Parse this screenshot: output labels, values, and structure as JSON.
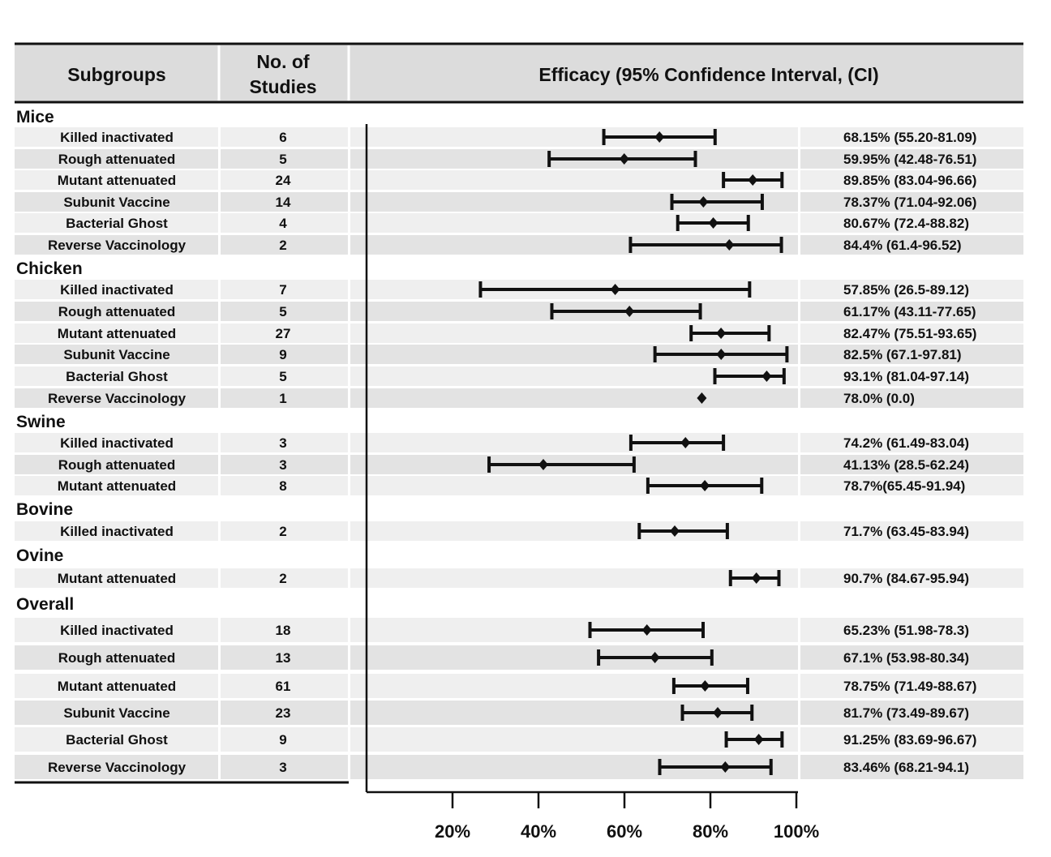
{
  "chart_data": {
    "type": "forest",
    "headers": {
      "subgroups": "Subgroups",
      "studies": [
        "No. of",
        "Studies"
      ],
      "efficacy": "Efficacy (95% Confidence Interval,  (CI)"
    },
    "xaxis": {
      "ticks": [
        20,
        40,
        60,
        80,
        100
      ],
      "tick_labels": [
        "20%",
        "40%",
        "60%",
        "80%",
        "100%"
      ],
      "range": [
        0,
        100
      ]
    },
    "groups": [
      {
        "name": "Mice",
        "rows": [
          {
            "label": "Killed inactivated",
            "n": "6",
            "est": 68.15,
            "lo": 55.2,
            "hi": 81.09,
            "text": "68.15% (55.20-81.09)"
          },
          {
            "label": "Rough attenuated",
            "n": "5",
            "est": 59.95,
            "lo": 42.48,
            "hi": 76.51,
            "text": "59.95% (42.48-76.51)"
          },
          {
            "label": "Mutant attenuated",
            "n": "24",
            "est": 89.85,
            "lo": 83.04,
            "hi": 96.66,
            "text": "89.85% (83.04-96.66)"
          },
          {
            "label": "Subunit Vaccine",
            "n": "14",
            "est": 78.37,
            "lo": 71.04,
            "hi": 92.06,
            "text": "78.37% (71.04-92.06)"
          },
          {
            "label": "Bacterial Ghost",
            "n": "4",
            "est": 80.67,
            "lo": 72.4,
            "hi": 88.82,
            "text": "80.67% (72.4-88.82)"
          },
          {
            "label": "Reverse Vaccinology",
            "n": "2",
            "est": 84.4,
            "lo": 61.4,
            "hi": 96.52,
            "text": "84.4% (61.4-96.52)"
          }
        ]
      },
      {
        "name": "Chicken",
        "rows": [
          {
            "label": "Killed inactivated",
            "n": "7",
            "est": 57.85,
            "lo": 26.5,
            "hi": 89.12,
            "text": "57.85% (26.5-89.12)"
          },
          {
            "label": "Rough attenuated",
            "n": "5",
            "est": 61.17,
            "lo": 43.11,
            "hi": 77.65,
            "text": "61.17% (43.11-77.65)"
          },
          {
            "label": "Mutant attenuated",
            "n": "27",
            "est": 82.47,
            "lo": 75.51,
            "hi": 93.65,
            "text": "82.47% (75.51-93.65)"
          },
          {
            "label": "Subunit Vaccine",
            "n": "9",
            "est": 82.5,
            "lo": 67.1,
            "hi": 97.81,
            "text": "82.5% (67.1-97.81)"
          },
          {
            "label": "Bacterial Ghost",
            "n": "5",
            "est": 93.1,
            "lo": 81.04,
            "hi": 97.14,
            "text": "93.1% (81.04-97.14)"
          },
          {
            "label": "Reverse Vaccinology",
            "n": "1",
            "est": 78.0,
            "lo": null,
            "hi": null,
            "text": "78.0% (0.0)"
          }
        ]
      },
      {
        "name": "Swine",
        "rows": [
          {
            "label": "Killed inactivated",
            "n": "3",
            "est": 74.2,
            "lo": 61.49,
            "hi": 83.04,
            "text": "74.2% (61.49-83.04)"
          },
          {
            "label": "Rough attenuated",
            "n": "3",
            "est": 41.13,
            "lo": 28.5,
            "hi": 62.24,
            "text": "41.13% (28.5-62.24)"
          },
          {
            "label": "Mutant attenuated",
            "n": "8",
            "est": 78.7,
            "lo": 65.45,
            "hi": 91.94,
            "text": "78.7%(65.45-91.94)"
          }
        ]
      },
      {
        "name": "Bovine",
        "rows": [
          {
            "label": "Killed inactivated",
            "n": "2",
            "est": 71.7,
            "lo": 63.45,
            "hi": 83.94,
            "text": "71.7% (63.45-83.94)"
          }
        ]
      },
      {
        "name": "Ovine",
        "rows": [
          {
            "label": "Mutant attenuated",
            "n": "2",
            "est": 90.7,
            "lo": 84.67,
            "hi": 95.94,
            "text": "90.7% (84.67-95.94)"
          }
        ]
      },
      {
        "name": "Overall",
        "rows": [
          {
            "label": "Killed inactivated",
            "n": "18",
            "est": 65.23,
            "lo": 51.98,
            "hi": 78.3,
            "text": "65.23% (51.98-78.3)"
          },
          {
            "label": "Rough attenuated",
            "n": "13",
            "est": 67.1,
            "lo": 53.98,
            "hi": 80.34,
            "text": "67.1% (53.98-80.34)"
          },
          {
            "label": "Mutant attenuated",
            "n": "61",
            "est": 78.75,
            "lo": 71.49,
            "hi": 88.67,
            "text": "78.75% (71.49-88.67)"
          },
          {
            "label": "Subunit Vaccine",
            "n": "23",
            "est": 81.7,
            "lo": 73.49,
            "hi": 89.67,
            "text": "81.7% (73.49-89.67)"
          },
          {
            "label": "Bacterial Ghost",
            "n": "9",
            "est": 91.25,
            "lo": 83.69,
            "hi": 96.67,
            "text": "91.25% (83.69-96.67)"
          },
          {
            "label": "Reverse Vaccinology",
            "n": "3",
            "est": 83.46,
            "lo": 68.21,
            "hi": 94.1,
            "text": "83.46% (68.21-94.1)"
          }
        ]
      }
    ]
  }
}
